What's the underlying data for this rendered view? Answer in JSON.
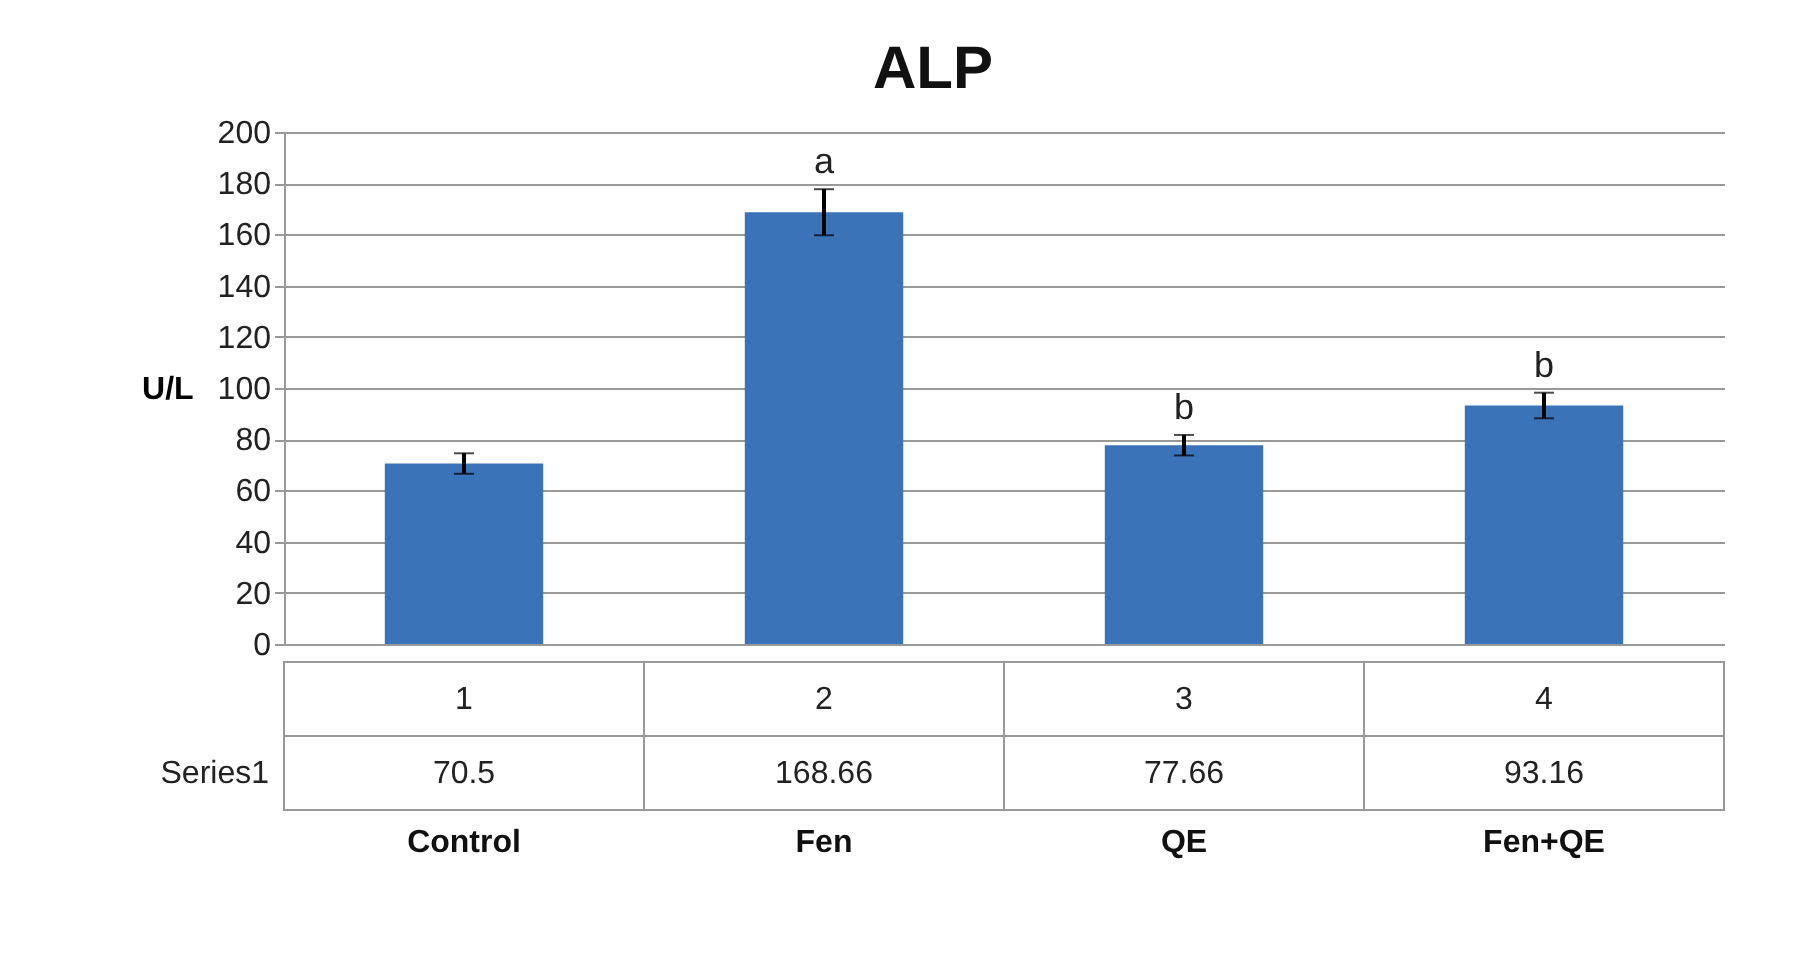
{
  "chart_data": {
    "type": "bar",
    "title": "ALP",
    "ylabel": "U/L",
    "categories": [
      "1",
      "2",
      "3",
      "4"
    ],
    "series": [
      {
        "name": "Series1",
        "color": "#3b73b9",
        "values": [
          70.5,
          168.66,
          77.66,
          93.16
        ],
        "errors": [
          4,
          9,
          4,
          5
        ]
      }
    ],
    "ylim": [
      0,
      200
    ],
    "yticks": [
      0,
      20,
      40,
      60,
      80,
      100,
      120,
      140,
      160,
      180,
      200
    ],
    "grid": "y",
    "data_labels": true,
    "annotations": [
      {
        "text": "a",
        "x": "2",
        "y": 168.66
      },
      {
        "text": "b",
        "x": "3",
        "y": 77.66
      },
      {
        "text": "b",
        "x": "4",
        "y": 93.16
      },
      "Control",
      "Fen",
      "QE",
      "Fen+QE"
    ]
  }
}
